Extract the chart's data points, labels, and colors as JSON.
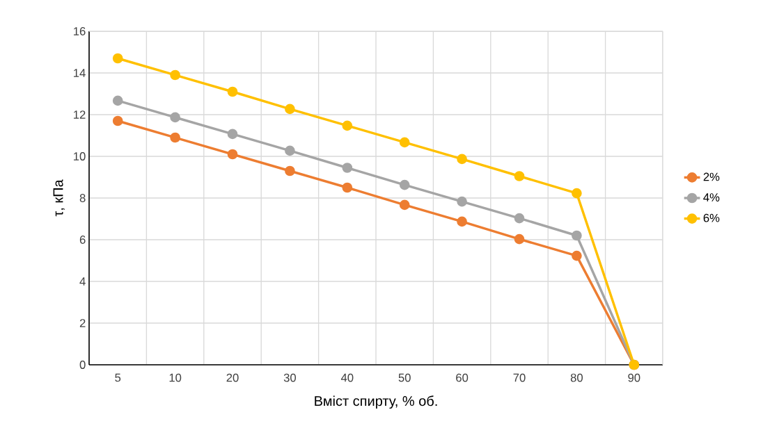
{
  "chart_data": {
    "type": "line",
    "xlabel": "Вміст спирту, % об.",
    "ylabel": "τ,  кПа",
    "categories": [
      "5",
      "10",
      "20",
      "30",
      "40",
      "50",
      "60",
      "70",
      "80",
      "90"
    ],
    "series": [
      {
        "name": "2%",
        "color": "#ed7d31",
        "values": [
          11.7,
          10.9,
          10.1,
          9.3,
          8.5,
          7.67,
          6.87,
          6.03,
          5.23,
          0
        ]
      },
      {
        "name": "4%",
        "color": "#a5a5a5",
        "values": [
          12.67,
          11.87,
          11.07,
          10.27,
          9.45,
          8.63,
          7.83,
          7.03,
          6.2,
          0
        ]
      },
      {
        "name": "6%",
        "color": "#ffc000",
        "values": [
          14.7,
          13.9,
          13.1,
          12.27,
          11.47,
          10.67,
          9.87,
          9.05,
          8.23,
          0
        ]
      }
    ],
    "ylim": [
      0,
      16
    ],
    "yticks": [
      0,
      2,
      4,
      6,
      8,
      10,
      12,
      14,
      16
    ],
    "grid": true,
    "legend": "right",
    "marker": "circle",
    "line_style": "solid"
  }
}
